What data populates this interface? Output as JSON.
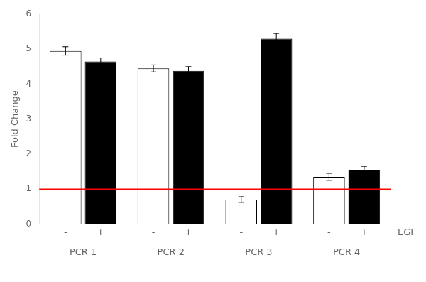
{
  "chart_data": {
    "type": "bar",
    "categories": [
      "PCR 1",
      "PCR 2",
      "PCR 3",
      "PCR 4"
    ],
    "series": [
      {
        "name": "-",
        "color": "#ffffff",
        "values": [
          4.95,
          4.45,
          0.7,
          1.35
        ],
        "errors": [
          0.12,
          0.1,
          0.08,
          0.1
        ]
      },
      {
        "name": "+",
        "color": "#000000",
        "values": [
          4.65,
          4.38,
          5.3,
          1.55
        ],
        "errors": [
          0.1,
          0.12,
          0.15,
          0.1
        ]
      }
    ],
    "ylabel": "Fold Change",
    "ylim": [
      0,
      6
    ],
    "yticks": [
      0,
      1,
      2,
      3,
      4,
      5,
      6
    ],
    "annotations": [
      {
        "y": 1.0,
        "color": "#ff0000"
      },
      {
        "text": "EGF"
      }
    ],
    "grid": false,
    "legend": false
  }
}
